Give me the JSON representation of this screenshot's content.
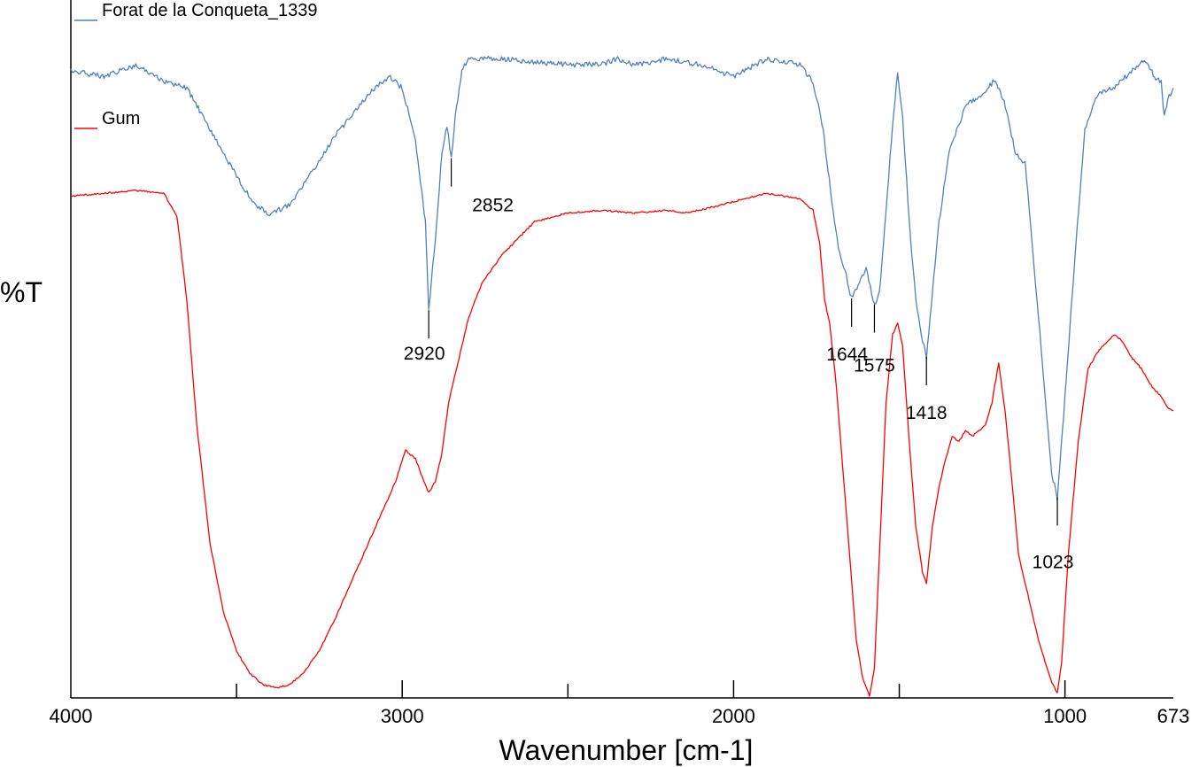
{
  "chart_data": {
    "type": "line",
    "title": "",
    "xlabel": "Wavenumber [cm-1]",
    "ylabel": "%T",
    "xlim": [
      4000,
      673
    ],
    "x_reversed": true,
    "grid": false,
    "legend_placement": "inline-left",
    "xticks": [
      "4000",
      "3000",
      "2000",
      "1000",
      "673"
    ],
    "xtick_values": [
      4000,
      3000,
      2000,
      1000,
      673
    ],
    "minor_xticks": [
      3500,
      2500,
      1500
    ],
    "colors": {
      "series_1": "#4f81bd",
      "series_2": "#ff0000"
    },
    "series": [
      {
        "name": "Forat de la Conqueta_1339",
        "color": "#4f81bd",
        "x": [
          4000,
          3900,
          3800,
          3720,
          3650,
          3600,
          3540,
          3480,
          3440,
          3400,
          3340,
          3280,
          3200,
          3100,
          3040,
          3000,
          2960,
          2930,
          2920,
          2900,
          2880,
          2865,
          2852,
          2840,
          2820,
          2800,
          2700,
          2600,
          2500,
          2400,
          2350,
          2300,
          2200,
          2100,
          2000,
          1900,
          1800,
          1760,
          1730,
          1700,
          1680,
          1660,
          1644,
          1620,
          1600,
          1575,
          1560,
          1540,
          1520,
          1505,
          1490,
          1470,
          1450,
          1430,
          1418,
          1400,
          1380,
          1350,
          1300,
          1250,
          1210,
          1180,
          1150,
          1120,
          1100,
          1080,
          1060,
          1040,
          1023,
          1000,
          970,
          940,
          900,
          850,
          800,
          760,
          730,
          710,
          700,
          690,
          673
        ],
        "y": [
          94,
          93,
          95,
          92,
          91,
          86,
          80,
          74,
          71,
          69.5,
          71,
          76,
          83,
          90,
          93,
          91,
          82,
          68,
          53,
          65,
          80,
          84.5,
          79,
          86,
          94,
          96,
          96,
          95.5,
          95,
          95,
          96,
          95,
          96,
          95,
          93,
          96,
          95,
          92,
          84,
          70,
          62.5,
          59,
          55,
          58,
          60,
          54,
          56,
          70,
          85,
          93.5,
          86,
          68,
          55,
          48,
          45,
          56,
          68,
          80,
          88,
          90,
          92.5,
          88,
          80,
          78,
          65,
          52,
          38,
          25,
          21,
          38,
          62,
          84,
          90,
          91,
          94,
          96,
          93,
          92,
          86,
          89,
          91
        ]
      },
      {
        "name": "Gum",
        "color": "#ff0000",
        "x": [
          4000,
          3900,
          3800,
          3720,
          3680,
          3650,
          3620,
          3580,
          3540,
          3500,
          3460,
          3420,
          3380,
          3340,
          3300,
          3250,
          3200,
          3140,
          3080,
          3020,
          2990,
          2960,
          2935,
          2920,
          2900,
          2880,
          2860,
          2840,
          2800,
          2760,
          2700,
          2650,
          2600,
          2500,
          2400,
          2300,
          2200,
          2150,
          2100,
          2000,
          1900,
          1800,
          1760,
          1740,
          1725,
          1710,
          1690,
          1670,
          1650,
          1630,
          1610,
          1590,
          1575,
          1560,
          1540,
          1520,
          1505,
          1490,
          1470,
          1450,
          1430,
          1418,
          1400,
          1380,
          1360,
          1340,
          1320,
          1300,
          1280,
          1260,
          1240,
          1220,
          1200,
          1180,
          1160,
          1140,
          1120,
          1100,
          1080,
          1060,
          1040,
          1023,
          1010,
          990,
          960,
          930,
          900,
          870,
          850,
          830,
          800,
          770,
          740,
          710,
          690,
          673
        ],
        "y": [
          88.5,
          89,
          89.5,
          89,
          85,
          70,
          48,
          27,
          15,
          8,
          4,
          2,
          1.5,
          2,
          4,
          8,
          14,
          22,
          30,
          38,
          43.5,
          42,
          38,
          36,
          38,
          43,
          52,
          57,
          67,
          73,
          78,
          81,
          84,
          85.5,
          86,
          85.5,
          86,
          85.5,
          86,
          87.5,
          89,
          88,
          86,
          80,
          70,
          66,
          55,
          40,
          25,
          10,
          3,
          0,
          5,
          25,
          52,
          64,
          66,
          62,
          45,
          30,
          22,
          20,
          30,
          37,
          42,
          46,
          45,
          47,
          46,
          47,
          48,
          52,
          59,
          50,
          38,
          25,
          20,
          15,
          10,
          6,
          2.5,
          0.5,
          6,
          25,
          45,
          58,
          61,
          63,
          64,
          63,
          60,
          58,
          55,
          53,
          51,
          50.5
        ]
      }
    ],
    "annotations": [
      {
        "label": "2920",
        "series": 0,
        "x": 2920
      },
      {
        "label": "2852",
        "series": 0,
        "x": 2852
      },
      {
        "label": "1644",
        "series": 0,
        "x": 1644
      },
      {
        "label": "1575",
        "series": 0,
        "x": 1575
      },
      {
        "label": "1418",
        "series": 0,
        "x": 1418
      },
      {
        "label": "1023",
        "series": 0,
        "x": 1023
      }
    ]
  }
}
